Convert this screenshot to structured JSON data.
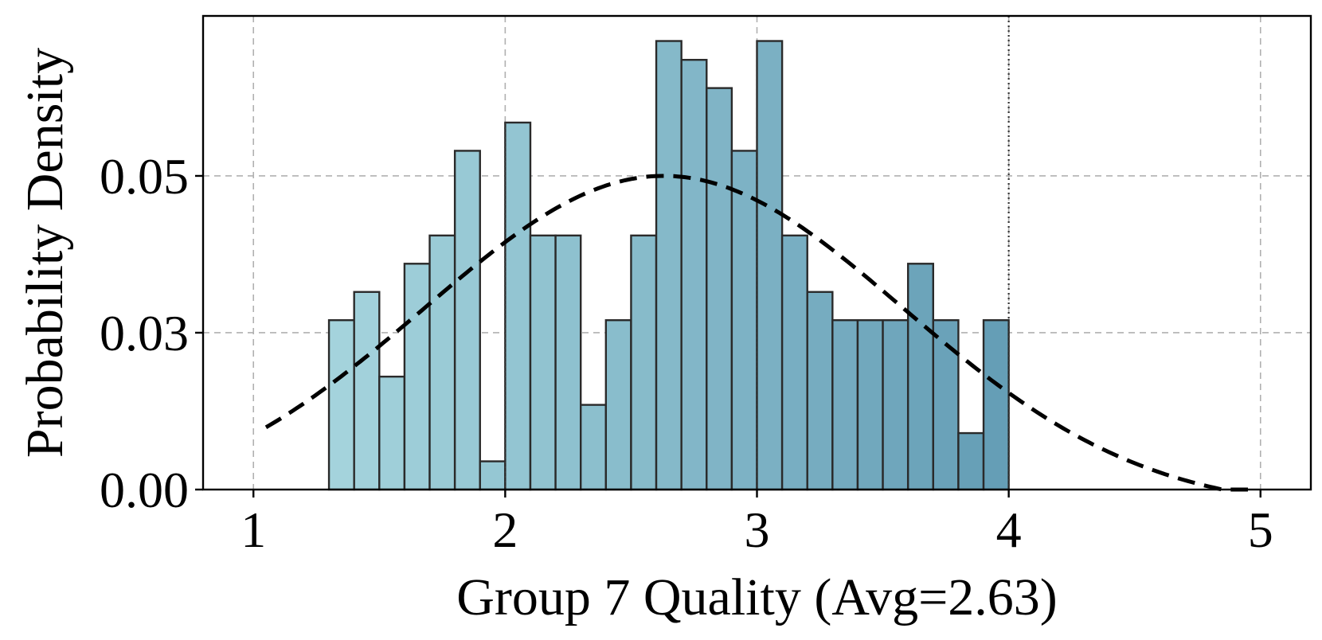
{
  "chart_data": {
    "type": "bar",
    "xlabel": "Group 7 Quality (Avg=2.63)",
    "ylabel": "Probability Density",
    "xlim": [
      0.8,
      5.2
    ],
    "ylim": [
      0.0,
      0.0755
    ],
    "xticks": [
      1,
      2,
      3,
      4,
      5
    ],
    "xtick_labels": [
      "1",
      "2",
      "3",
      "4",
      "5"
    ],
    "yticks": [
      0.0,
      0.025,
      0.05
    ],
    "ytick_labels": [
      "0.00",
      "0.03",
      "0.05"
    ],
    "grid": true,
    "legend": "none",
    "bin_width": 0.1,
    "bin_starts": [
      1.3,
      1.4,
      1.5,
      1.6,
      1.7,
      1.8,
      1.9,
      2.0,
      2.1,
      2.2,
      2.3,
      2.4,
      2.5,
      2.6,
      2.7,
      2.8,
      2.9,
      3.0,
      3.1,
      3.2,
      3.3,
      3.4,
      3.5,
      3.6,
      3.7,
      3.8,
      3.9
    ],
    "values": [
      0.027,
      0.0315,
      0.018,
      0.036,
      0.0405,
      0.054,
      0.0045,
      0.0585,
      0.0405,
      0.0405,
      0.0135,
      0.027,
      0.0405,
      0.0715,
      0.0685,
      0.064,
      0.054,
      0.0715,
      0.0405,
      0.0315,
      0.027,
      0.027,
      0.027,
      0.036,
      0.027,
      0.009,
      0.027
    ],
    "reference_lines_x": [
      2,
      3,
      4
    ],
    "density_curve": {
      "style": "dashed",
      "mean": 2.63,
      "sd": 0.87,
      "x_range": [
        1.05,
        4.95
      ]
    },
    "bar_color_start": "#a4d3dc",
    "bar_color_end": "#659eb6",
    "curve_color": "#000000"
  }
}
